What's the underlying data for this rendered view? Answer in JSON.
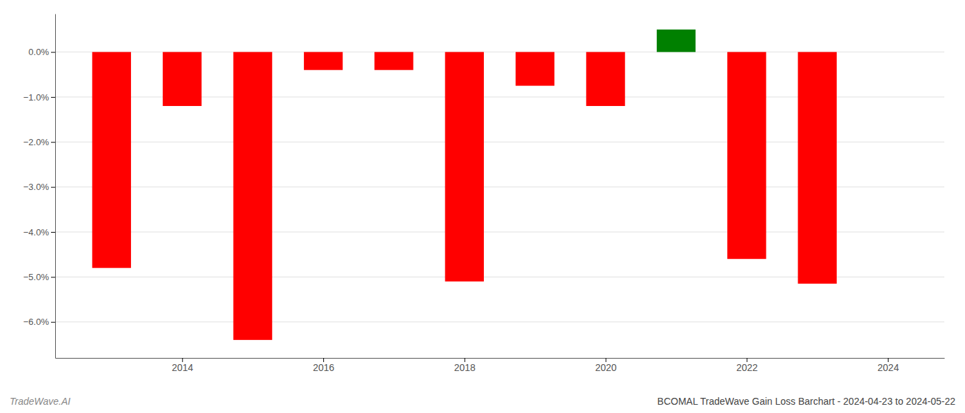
{
  "chart_data": {
    "type": "bar",
    "title": "BCOMAL TradeWave Gain Loss Barchart - 2024-04-23 to 2024-05-22",
    "annotations": [
      "TradeWave.AI"
    ],
    "x": [
      2013,
      2014,
      2015,
      2016,
      2017,
      2018,
      2019,
      2020,
      2021,
      2022,
      2023
    ],
    "values": [
      -4.8,
      -1.2,
      -6.4,
      -0.4,
      -0.4,
      -5.1,
      -0.75,
      -1.2,
      0.5,
      -4.6,
      -5.15
    ],
    "colors": [
      "#ff0000",
      "#ff0000",
      "#ff0000",
      "#ff0000",
      "#ff0000",
      "#ff0000",
      "#ff0000",
      "#ff0000",
      "#008000",
      "#ff0000",
      "#ff0000"
    ],
    "xlim": [
      2012.2,
      2024.8
    ],
    "xticks": [
      2014,
      2016,
      2018,
      2020,
      2022,
      2024
    ],
    "ylim": [
      -6.8,
      0.85
    ],
    "yticks": [
      {
        "value": 0.0,
        "label": "0.0%"
      },
      {
        "value": -1.0,
        "label": "−1.0%"
      },
      {
        "value": -2.0,
        "label": "−2.0%"
      },
      {
        "value": -3.0,
        "label": "−3.0%"
      },
      {
        "value": -4.0,
        "label": "−4.0%"
      },
      {
        "value": -5.0,
        "label": "−5.0%"
      },
      {
        "value": -6.0,
        "label": "−6.0%"
      }
    ],
    "grid": true
  }
}
